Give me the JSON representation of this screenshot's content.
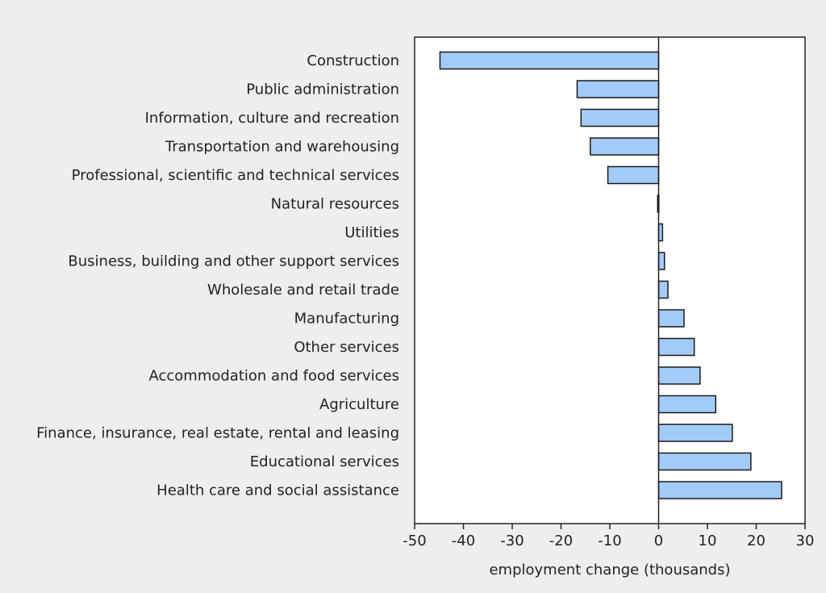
{
  "chart_data": {
    "type": "bar",
    "orientation": "horizontal",
    "title": "",
    "xlabel": "employment change (thousands)",
    "ylabel": "",
    "xlim": [
      -50,
      30
    ],
    "xticks": [
      -50,
      -40,
      -30,
      -20,
      -10,
      0,
      10,
      20,
      30
    ],
    "grid": false,
    "legend": "none",
    "bar_color": "#a3cbf7",
    "bar_edge_color": "#1a1a1a",
    "background_color": "#eeeeee",
    "categories": [
      "Construction",
      "Public administration",
      "Information, culture and recreation",
      "Transportation and warehousing",
      "Professional, scientific and technical services",
      "Natural resources",
      "Utilities",
      "Business, building and other support services",
      "Wholesale and retail trade",
      "Manufacturing",
      "Other services",
      "Accommodation and food services",
      "Agriculture",
      "Finance, insurance, real estate, rental and leasing",
      "Educational services",
      "Health care and social assistance"
    ],
    "values": [
      -44.8,
      -16.7,
      -15.9,
      -14.0,
      -10.4,
      -0.2,
      0.8,
      1.2,
      1.9,
      5.2,
      7.3,
      8.5,
      11.7,
      15.1,
      18.9,
      25.2
    ]
  }
}
